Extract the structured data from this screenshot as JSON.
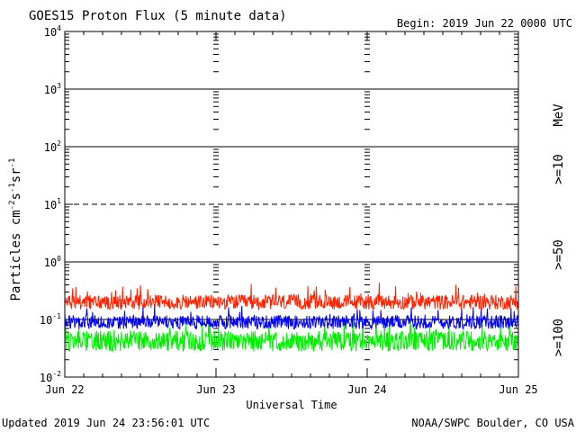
{
  "chart_data": {
    "type": "line",
    "title": "GOES15 Proton Flux (5 minute data)",
    "begin_label": "Begin: 2019 Jun 22 0000 UTC",
    "ylabel_text": "Particles cm",
    "ylabel_sup1": "-2",
    "ylabel_mid1": "s",
    "ylabel_sup2": "-1",
    "ylabel_mid2": "sr",
    "ylabel_sup3": "-1",
    "xlabel": "Universal Time",
    "y_scale": "log",
    "ylim": [
      0.01,
      10000
    ],
    "y_ticks": [
      {
        "base": "10",
        "exp": "4"
      },
      {
        "base": "10",
        "exp": "3"
      },
      {
        "base": "10",
        "exp": "2"
      },
      {
        "base": "10",
        "exp": "1"
      },
      {
        "base": "10",
        "exp": "0"
      },
      {
        "base": "10",
        "exp": "-1"
      },
      {
        "base": "10",
        "exp": "-2"
      }
    ],
    "x_ticks": [
      "Jun 22",
      "Jun 23",
      "Jun 24",
      "Jun 25"
    ],
    "xlim_days": [
      0,
      3
    ],
    "grid": true,
    "reference_lines": [
      1000,
      100,
      10,
      1,
      0.1
    ],
    "legend_unit": "MeV",
    "series": [
      {
        "name": ">=10",
        "color": "#ff2200",
        "base": 0.2,
        "spread": 0.13,
        "max": 0.65
      },
      {
        "name": ">=50",
        "color": "#0000ee",
        "base": 0.09,
        "spread": 0.12,
        "max": 0.25
      },
      {
        "name": ">=100",
        "color": "#00ee00",
        "base": 0.042,
        "spread": 0.18,
        "max": 0.09
      }
    ]
  },
  "footer": {
    "updated": "Updated 2019 Jun 24 23:56:01 UTC",
    "credit": "NOAA/SWPC Boulder, CO USA"
  }
}
